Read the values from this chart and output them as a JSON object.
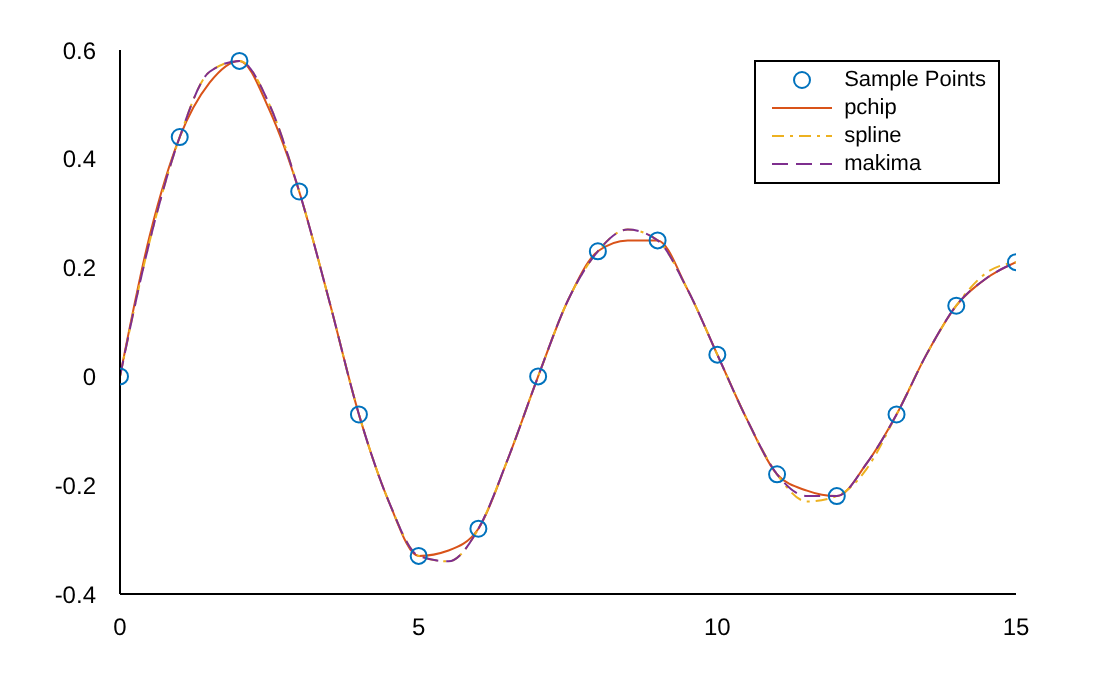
{
  "chart_data": {
    "type": "line",
    "xlim": [
      0,
      15
    ],
    "xticks": [
      0,
      5,
      10,
      15
    ],
    "ylim": [
      -0.4,
      0.6
    ],
    "yticks": [
      -0.4,
      -0.2,
      0,
      0.2,
      0.4,
      0.6
    ],
    "legend": "top right",
    "series": [
      {
        "name": "Sample Points",
        "type": "scatter",
        "marker": "circle",
        "color": "#0072bd",
        "x": [
          0,
          1,
          2,
          3,
          4,
          5,
          6,
          7,
          8,
          9,
          10,
          11,
          12,
          13,
          14,
          15
        ],
        "values": [
          0,
          0.44,
          0.58,
          0.34,
          -0.07,
          -0.33,
          -0.28,
          0,
          0.23,
          0.25,
          0.04,
          -0.18,
          -0.22,
          -0.07,
          0.13,
          0.21
        ]
      },
      {
        "name": "pchip",
        "type": "line",
        "line_style": "solid",
        "color": "#d95319",
        "x": [
          0,
          0.5,
          1,
          1.5,
          2,
          2.5,
          3,
          3.5,
          4,
          4.5,
          5,
          5.5,
          6,
          6.5,
          7,
          7.5,
          8,
          8.5,
          9,
          9.5,
          10,
          10.5,
          11,
          11.5,
          12,
          12.5,
          13,
          13.5,
          14,
          14.5,
          15
        ],
        "values": [
          0,
          0.26,
          0.44,
          0.54,
          0.58,
          0.49,
          0.34,
          0.14,
          -0.07,
          -0.23,
          -0.33,
          -0.32,
          -0.28,
          -0.15,
          0,
          0.14,
          0.23,
          0.25,
          0.25,
          0.16,
          0.04,
          -0.08,
          -0.18,
          -0.21,
          -0.22,
          -0.16,
          -0.07,
          0.04,
          0.13,
          0.18,
          0.21
        ]
      },
      {
        "name": "spline",
        "type": "line",
        "line_style": "dashdot",
        "color": "#edb120",
        "x": [
          0,
          0.5,
          1,
          1.5,
          2,
          2.5,
          3,
          3.5,
          4,
          4.5,
          5,
          5.5,
          6,
          6.5,
          7,
          7.5,
          8,
          8.5,
          9,
          9.5,
          10,
          10.5,
          11,
          11.5,
          12,
          12.5,
          13,
          13.5,
          14,
          14.5,
          15
        ],
        "values": [
          0,
          0.25,
          0.44,
          0.56,
          0.58,
          0.5,
          0.34,
          0.14,
          -0.07,
          -0.23,
          -0.33,
          -0.34,
          -0.28,
          -0.15,
          0,
          0.14,
          0.23,
          0.27,
          0.25,
          0.16,
          0.04,
          -0.08,
          -0.18,
          -0.23,
          -0.22,
          -0.17,
          -0.07,
          0.04,
          0.13,
          0.19,
          0.21
        ]
      },
      {
        "name": "makima",
        "type": "line",
        "line_style": "dashed",
        "color": "#7e2f8e",
        "x": [
          0,
          0.5,
          1,
          1.5,
          2,
          2.5,
          3,
          3.5,
          4,
          4.5,
          5,
          5.5,
          6,
          6.5,
          7,
          7.5,
          8,
          8.5,
          9,
          9.5,
          10,
          10.5,
          11,
          11.5,
          12,
          12.5,
          13,
          13.5,
          14,
          14.5,
          15
        ],
        "values": [
          0,
          0.25,
          0.44,
          0.56,
          0.58,
          0.5,
          0.34,
          0.14,
          -0.07,
          -0.23,
          -0.33,
          -0.34,
          -0.28,
          -0.15,
          0,
          0.14,
          0.23,
          0.27,
          0.25,
          0.16,
          0.04,
          -0.08,
          -0.18,
          -0.22,
          -0.22,
          -0.16,
          -0.07,
          0.04,
          0.13,
          0.18,
          0.21
        ]
      }
    ]
  }
}
